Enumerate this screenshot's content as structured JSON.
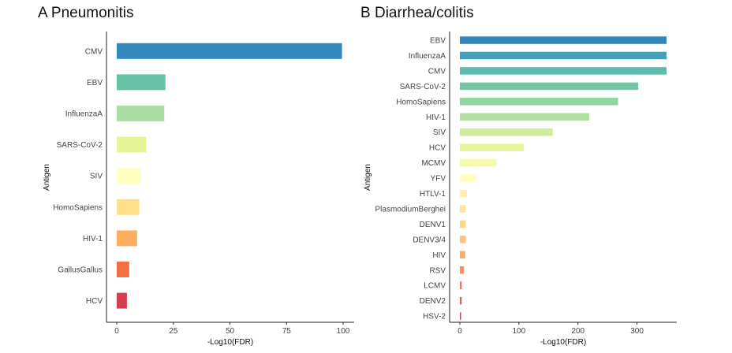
{
  "chart_data": [
    {
      "type": "bar",
      "orientation": "horizontal",
      "panel_label": "A",
      "title": "Pneumonitis",
      "xlabel": "-Log10(FDR)",
      "ylabel": "Antigen",
      "xlim": [
        0,
        100
      ],
      "xticks": [
        0,
        25,
        50,
        75,
        100
      ],
      "grid": false,
      "categories": [
        "CMV",
        "EBV",
        "InfluenzaA",
        "SARS-CoV-2",
        "SIV",
        "HomoSapiens",
        "HIV-1",
        "GallusGallus",
        "HCV"
      ],
      "values": [
        99.5,
        21.5,
        21,
        13,
        10.5,
        10,
        9,
        5.5,
        4.5
      ],
      "colors": [
        "#3288bd",
        "#66c2a5",
        "#abdda4",
        "#e6f598",
        "#ffffbf",
        "#fee08b",
        "#fdae61",
        "#f46d43",
        "#d53e4f"
      ]
    },
    {
      "type": "bar",
      "orientation": "horizontal",
      "panel_label": "B",
      "title": "Diarrhea/colitis",
      "xlabel": "-Log10(FDR)",
      "ylabel": "Antigen",
      "xlim": [
        0,
        350
      ],
      "xticks": [
        0,
        100,
        200,
        300
      ],
      "grid": false,
      "categories": [
        "EBV",
        "InfluenzaA",
        "CMV",
        "SARS-CoV-2",
        "HomoSapiens",
        "HIV-1",
        "SIV",
        "HCV",
        "MCMV",
        "YFV",
        "HTLV-1",
        "PlasmodiumBerghei",
        "DENV1",
        "DENV3/4",
        "HIV",
        "RSV",
        "LCMV",
        "DENV2",
        "HSV-2"
      ],
      "values": [
        350,
        350,
        350,
        302,
        268,
        219,
        157,
        108,
        62,
        28,
        12,
        10,
        10,
        10,
        9,
        7,
        3,
        3,
        2
      ],
      "colors": [
        "#3288bd",
        "#45a0b7",
        "#5fbbac",
        "#72c7a4",
        "#94d4a4",
        "#b4e0a2",
        "#d1eb9d",
        "#e9f59b",
        "#f5faac",
        "#fffebd",
        "#fff1a9",
        "#fee597",
        "#fed683",
        "#fdc272",
        "#fbab62",
        "#f7925a",
        "#f27650",
        "#e55c4b",
        "#d53e4f"
      ]
    }
  ]
}
